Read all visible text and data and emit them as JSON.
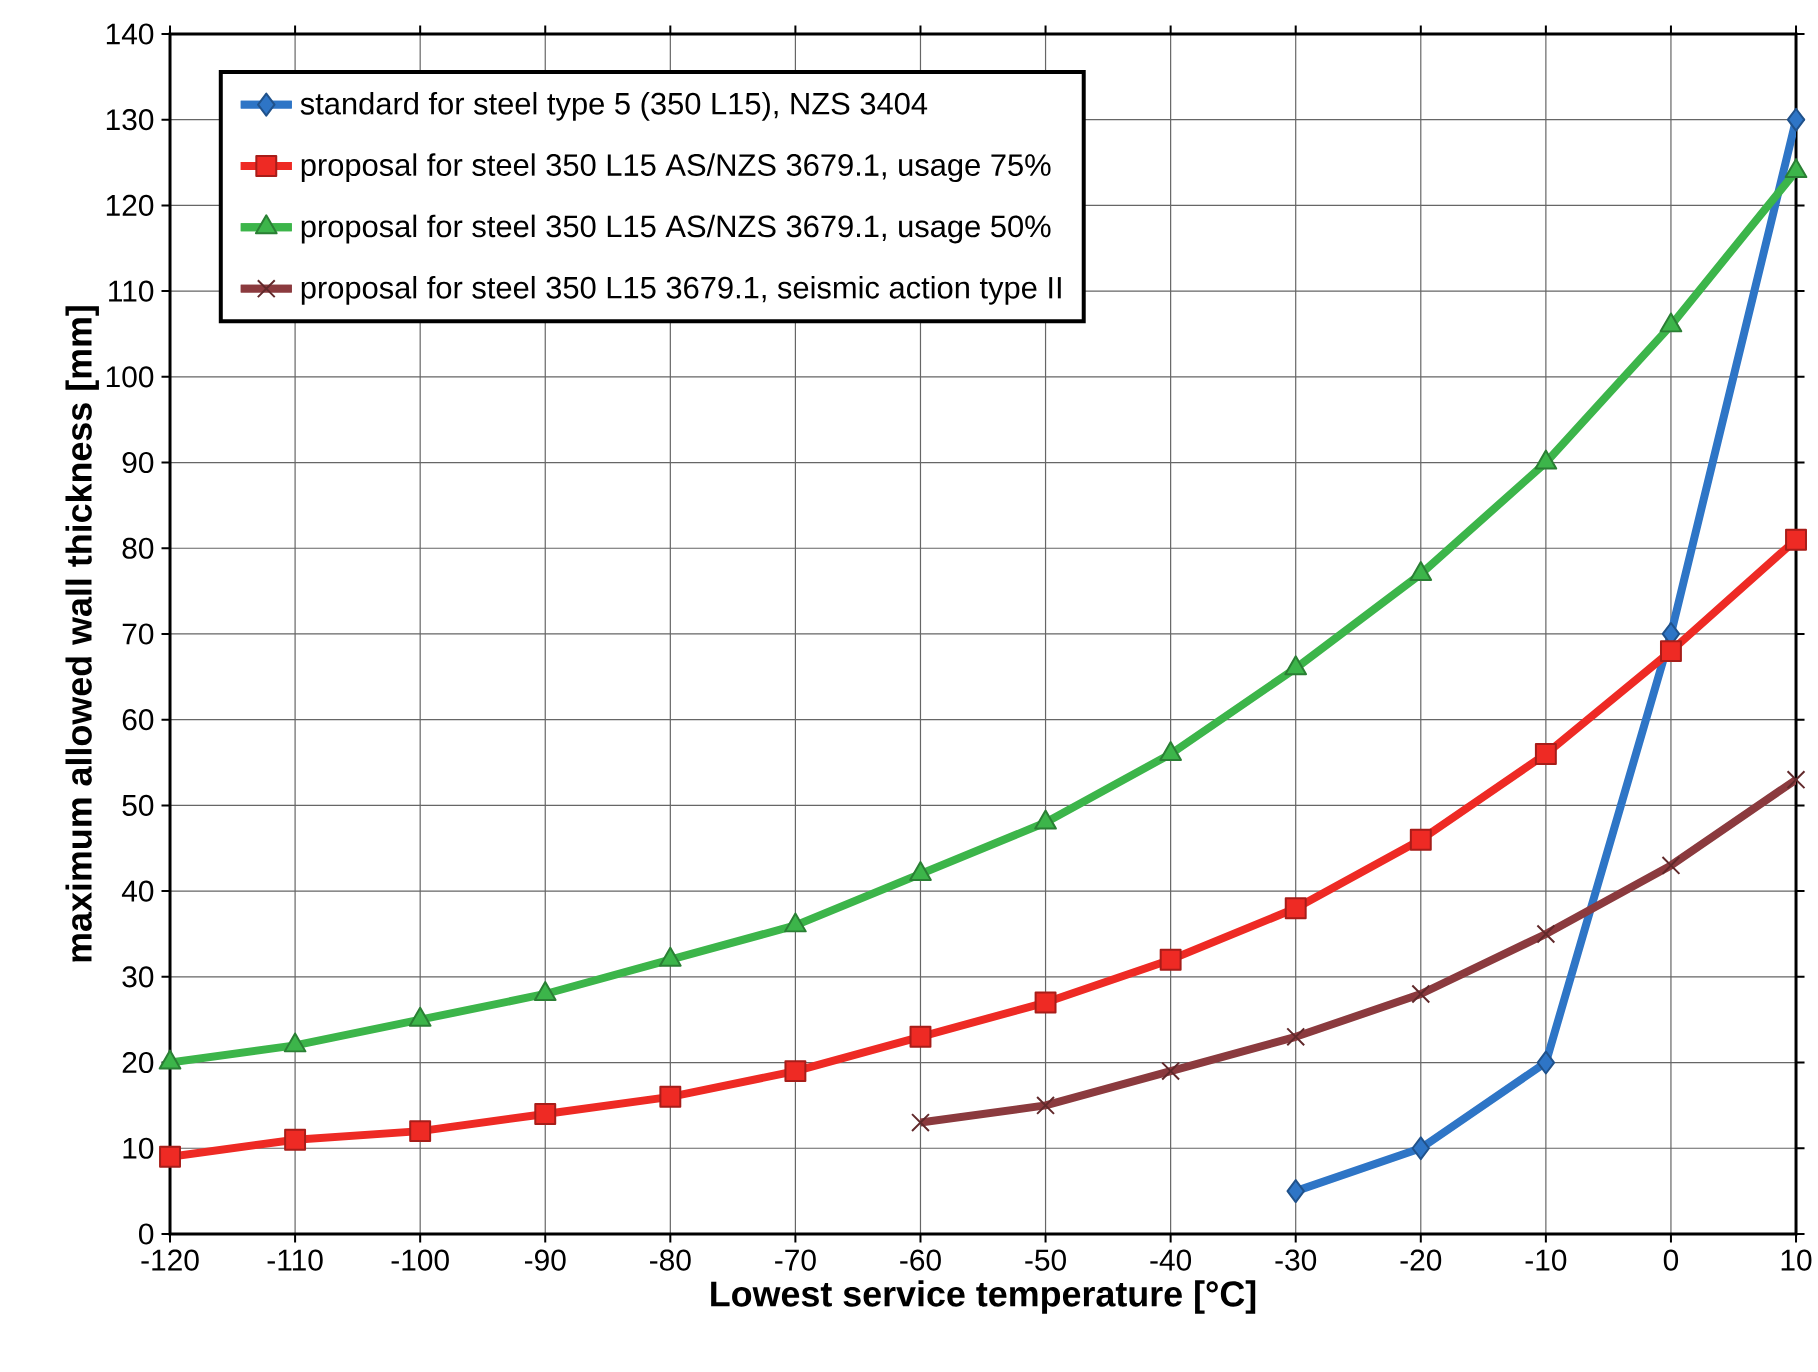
{
  "chart_data": {
    "type": "line",
    "xlabel": "Lowest service temperature [°C]",
    "ylabel": "maximum allowed wall thickness [mm]",
    "xlim": [
      -120,
      10
    ],
    "xticks": [
      -120,
      -110,
      -100,
      -90,
      -80,
      -70,
      -60,
      -50,
      -40,
      -30,
      -20,
      -10,
      0,
      10
    ],
    "ylim": [
      0,
      140
    ],
    "yticks": [
      0,
      10,
      20,
      30,
      40,
      50,
      60,
      70,
      80,
      90,
      100,
      110,
      120,
      130,
      140
    ],
    "grid": true,
    "legend": "top left",
    "series": [
      {
        "name": "standard for steel type 5 (350 L15), NZS 3404",
        "color": "#2e75c6",
        "marker": "diamond",
        "x": [
          -30,
          -20,
          -10,
          0,
          10
        ],
        "values": [
          5,
          10,
          20,
          70,
          130
        ]
      },
      {
        "name": "proposal for steel 350 L15 AS/NZS 3679.1, usage 75%",
        "color": "#ee2a24",
        "marker": "square",
        "x": [
          -120,
          -110,
          -100,
          -90,
          -80,
          -70,
          -60,
          -50,
          -40,
          -30,
          -20,
          -10,
          0,
          10
        ],
        "values": [
          9,
          11,
          12,
          14,
          16,
          19,
          23,
          27,
          32,
          38,
          46,
          56,
          68,
          81
        ]
      },
      {
        "name": "proposal for steel 350 L15 AS/NZS 3679.1, usage 50%",
        "color": "#3cb54a",
        "marker": "triangle",
        "x": [
          -120,
          -110,
          -100,
          -90,
          -80,
          -70,
          -60,
          -50,
          -40,
          -30,
          -20,
          -10,
          0,
          10
        ],
        "values": [
          20,
          22,
          25,
          28,
          32,
          36,
          42,
          48,
          56,
          66,
          77,
          90,
          106,
          124
        ]
      },
      {
        "name": "proposal for steel 350 L15 3679.1, seismic action type II",
        "color": "#8b3a3e",
        "marker": "cross",
        "x": [
          -60,
          -50,
          -40,
          -30,
          -20,
          -10,
          0,
          10
        ],
        "values": [
          13,
          15,
          19,
          23,
          28,
          35,
          43,
          53
        ]
      }
    ]
  }
}
